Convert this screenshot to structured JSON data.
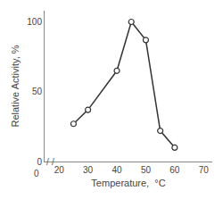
{
  "chart_data": {
    "type": "line",
    "xlabel": "Temperature,  °C",
    "ylabel": "Relative Activity, %",
    "x": [
      25,
      30,
      40,
      45,
      50,
      55,
      60
    ],
    "values": [
      27,
      37,
      65,
      100,
      87,
      22,
      10
    ],
    "color": "#333333",
    "marker": "circle",
    "xlim": [
      15,
      73
    ],
    "xticks": [
      20,
      30,
      40,
      50,
      60,
      70
    ],
    "ylim": [
      0,
      108
    ],
    "yticks": [
      0,
      50,
      100
    ],
    "grid": false,
    "annotations": [
      "0",
      "/",
      "/"
    ]
  }
}
